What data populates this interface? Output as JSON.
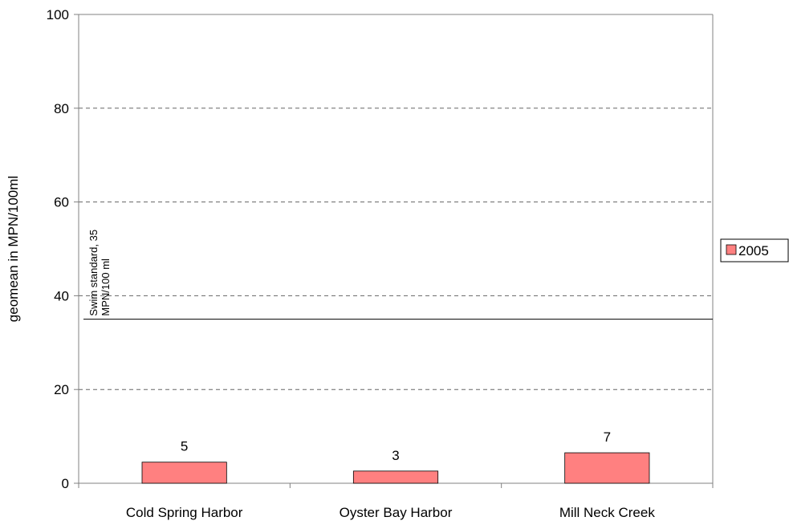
{
  "chart_data": {
    "type": "bar",
    "y_axis_label": "geomean in MPN/100ml",
    "categories": [
      "Cold Spring Harbor",
      "Oyster Bay Harbor",
      "Mill Neck Creek"
    ],
    "series": [
      {
        "name": "2005",
        "color": "#ff8080",
        "values": [
          4.5,
          2.6,
          6.5
        ],
        "value_labels": [
          "5",
          "3",
          "7"
        ]
      }
    ],
    "ylim": [
      0,
      100
    ],
    "yticks": [
      0,
      20,
      40,
      60,
      80,
      100
    ],
    "grid": true,
    "reference_line": {
      "value": 35,
      "label": [
        "Swim standard, 35",
        "MPN/100 ml"
      ]
    },
    "legend": "right"
  }
}
